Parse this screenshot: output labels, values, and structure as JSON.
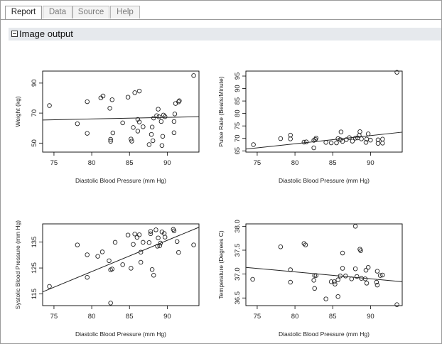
{
  "tabs": [
    {
      "label": "Report",
      "active": true
    },
    {
      "label": "Data",
      "active": false
    },
    {
      "label": "Source",
      "active": false
    },
    {
      "label": "Help",
      "active": false
    }
  ],
  "section": {
    "title": "Image output",
    "icon": "minus-box-icon"
  },
  "chart_data": [
    {
      "type": "scatter",
      "xlabel": "Diastolic Blood Pressure (mm Hg)",
      "ylabel": "Weight (kg)",
      "xlim": [
        73.5,
        94.2
      ],
      "ylim": [
        44,
        98
      ],
      "xticks": [
        75,
        80,
        85,
        90
      ],
      "yticks": [
        50,
        70,
        90
      ],
      "trend": [
        [
          73.5,
          65.4
        ],
        [
          94.2,
          67.6
        ]
      ],
      "points": [
        [
          74.4,
          75
        ],
        [
          78.1,
          62.9
        ],
        [
          79.4,
          56.5
        ],
        [
          79.4,
          77.6
        ],
        [
          81.2,
          80.1
        ],
        [
          81.5,
          81.4
        ],
        [
          82.4,
          73.2
        ],
        [
          82.7,
          78.9
        ],
        [
          82.5,
          52.5
        ],
        [
          82.8,
          56.8
        ],
        [
          82.5,
          51.2
        ],
        [
          84.1,
          63.5
        ],
        [
          84.8,
          80.6
        ],
        [
          85.2,
          52.7
        ],
        [
          85.3,
          51.3
        ],
        [
          85.5,
          60.4
        ],
        [
          85.7,
          83.6
        ],
        [
          86.1,
          65.8
        ],
        [
          86.3,
          84.7
        ],
        [
          86.3,
          64.1
        ],
        [
          86.1,
          58
        ],
        [
          86.8,
          60.9
        ],
        [
          87.6,
          49
        ],
        [
          87.9,
          55.8
        ],
        [
          88,
          60.7
        ],
        [
          88.1,
          51.6
        ],
        [
          88.2,
          66.7
        ],
        [
          88.6,
          68.3
        ],
        [
          88.8,
          72.6
        ],
        [
          88.9,
          67.5
        ],
        [
          89.2,
          64.4
        ],
        [
          89.3,
          48.4
        ],
        [
          89.4,
          54.5
        ],
        [
          89.5,
          68.7
        ],
        [
          89.7,
          67.6
        ],
        [
          90.9,
          64.4
        ],
        [
          91,
          69.4
        ],
        [
          90.9,
          56.9
        ],
        [
          91.1,
          76.4
        ],
        [
          91.5,
          77.5
        ],
        [
          91.6,
          78.2
        ],
        [
          93.5,
          95
        ]
      ]
    },
    {
      "type": "scatter",
      "xlabel": "Diastolic Blood Pressure (mm Hg)",
      "ylabel": "Pulse Rate (Beats/Minute)",
      "xlim": [
        73.5,
        94.2
      ],
      "ylim": [
        64.5,
        97
      ],
      "xticks": [
        75,
        80,
        85,
        90
      ],
      "yticks": [
        65,
        70,
        75,
        80,
        85,
        90,
        95
      ],
      "trend": [
        [
          73.5,
          65.7
        ],
        [
          94.2,
          72.5
        ]
      ],
      "points": [
        [
          74.5,
          67.5
        ],
        [
          78.1,
          69.9
        ],
        [
          79.4,
          71.3
        ],
        [
          79.4,
          69.8
        ],
        [
          81.2,
          68.5
        ],
        [
          81.5,
          68.6
        ],
        [
          82.5,
          66.2
        ],
        [
          82.7,
          69.6
        ],
        [
          82.5,
          69.2
        ],
        [
          82.8,
          70.1
        ],
        [
          84.1,
          68.4
        ],
        [
          84.8,
          68.2
        ],
        [
          85.5,
          68.2
        ],
        [
          85.7,
          69.9
        ],
        [
          86,
          69.5
        ],
        [
          86.1,
          72.6
        ],
        [
          86.3,
          68.8
        ],
        [
          86.8,
          69.5
        ],
        [
          87.2,
          70.3
        ],
        [
          87.6,
          68.9
        ],
        [
          88,
          70.1
        ],
        [
          88.3,
          70.2
        ],
        [
          88.6,
          72.7
        ],
        [
          88.5,
          71.2
        ],
        [
          88.8,
          69.8
        ],
        [
          89.4,
          68.4
        ],
        [
          89.5,
          69.7
        ],
        [
          89.7,
          71.8
        ],
        [
          90,
          69.3
        ],
        [
          91,
          69.4
        ],
        [
          91,
          68
        ],
        [
          91.6,
          69.7
        ],
        [
          91.6,
          68.1
        ],
        [
          93.5,
          96.5
        ]
      ]
    },
    {
      "type": "scatter",
      "xlabel": "Diastolic Blood Pressure (mm Hg)",
      "ylabel": "Systolic Blood Pressure (mm Hg)",
      "xlim": [
        73.5,
        94.2
      ],
      "ylim": [
        110.5,
        142
      ],
      "xticks": [
        75,
        80,
        85,
        90
      ],
      "yticks": [
        115,
        125,
        135
      ],
      "trend": [
        [
          73.5,
          115.8
        ],
        [
          94.2,
          140.7
        ]
      ],
      "points": [
        [
          74.4,
          117.9
        ],
        [
          78.1,
          133.9
        ],
        [
          79.4,
          130.1
        ],
        [
          79.4,
          121.4
        ],
        [
          80.8,
          129.5
        ],
        [
          81.4,
          131.2
        ],
        [
          82.3,
          127.8
        ],
        [
          82.5,
          124.3
        ],
        [
          82.7,
          124.6
        ],
        [
          82.5,
          111.5
        ],
        [
          83.1,
          134.9
        ],
        [
          84.1,
          126.3
        ],
        [
          84.8,
          137.7
        ],
        [
          85.2,
          124.9
        ],
        [
          85.5,
          134.1
        ],
        [
          85.7,
          138.1
        ],
        [
          86,
          136.8
        ],
        [
          86.3,
          137.8
        ],
        [
          86.5,
          127.2
        ],
        [
          86.5,
          131.1
        ],
        [
          86.8,
          134.9
        ],
        [
          87.6,
          134.8
        ],
        [
          87.8,
          139.1
        ],
        [
          87.8,
          138.2
        ],
        [
          88,
          124.4
        ],
        [
          88.2,
          122.2
        ],
        [
          88.5,
          139.7
        ],
        [
          88.7,
          133.4
        ],
        [
          88.8,
          136.6
        ],
        [
          89,
          133.6
        ],
        [
          89.1,
          134.6
        ],
        [
          89.3,
          138.9
        ],
        [
          89.6,
          138.3
        ],
        [
          89.7,
          136.9
        ],
        [
          90.8,
          139.9
        ],
        [
          90.9,
          139.3
        ],
        [
          91.3,
          135.2
        ],
        [
          91.5,
          131
        ],
        [
          93.5,
          133.9
        ]
      ]
    },
    {
      "type": "scatter",
      "xlabel": "Diastolic Blood Pressure (mm Hg)",
      "ylabel": "Temperature (Degrees C)",
      "xlim": [
        73.5,
        94.2
      ],
      "ylim": [
        36.34,
        38.05
      ],
      "xticks": [
        75,
        80,
        85,
        90
      ],
      "yticks": [
        36.5,
        37.0,
        37.5,
        38.0
      ],
      "trend": [
        [
          73.5,
          37.14
        ],
        [
          94.2,
          36.84
        ]
      ],
      "points": [
        [
          74.4,
          36.89
        ],
        [
          78.1,
          37.57
        ],
        [
          79.4,
          37.09
        ],
        [
          79.4,
          36.83
        ],
        [
          81.2,
          37.64
        ],
        [
          81.4,
          37.61
        ],
        [
          82.6,
          36.97
        ],
        [
          82.5,
          36.87
        ],
        [
          82.6,
          36.7
        ],
        [
          82.8,
          36.97
        ],
        [
          84.1,
          36.48
        ],
        [
          84.8,
          36.84
        ],
        [
          85.2,
          36.84
        ],
        [
          85.3,
          36.79
        ],
        [
          85.7,
          36.88
        ],
        [
          85.7,
          36.53
        ],
        [
          86,
          36.96
        ],
        [
          86.3,
          37.44
        ],
        [
          86.3,
          37.12
        ],
        [
          86.7,
          36.96
        ],
        [
          87.5,
          36.9
        ],
        [
          88,
          38.0
        ],
        [
          88,
          37.11
        ],
        [
          88.2,
          36.95
        ],
        [
          88.6,
          37.52
        ],
        [
          88.7,
          37.49
        ],
        [
          88.8,
          36.91
        ],
        [
          89.3,
          36.9
        ],
        [
          89.4,
          37.08
        ],
        [
          89.5,
          36.81
        ],
        [
          89.7,
          37.14
        ],
        [
          90.8,
          36.83
        ],
        [
          90.9,
          36.77
        ],
        [
          90.9,
          37.06
        ],
        [
          91.3,
          36.97
        ],
        [
          91.6,
          36.98
        ],
        [
          93.5,
          36.36
        ]
      ]
    }
  ]
}
